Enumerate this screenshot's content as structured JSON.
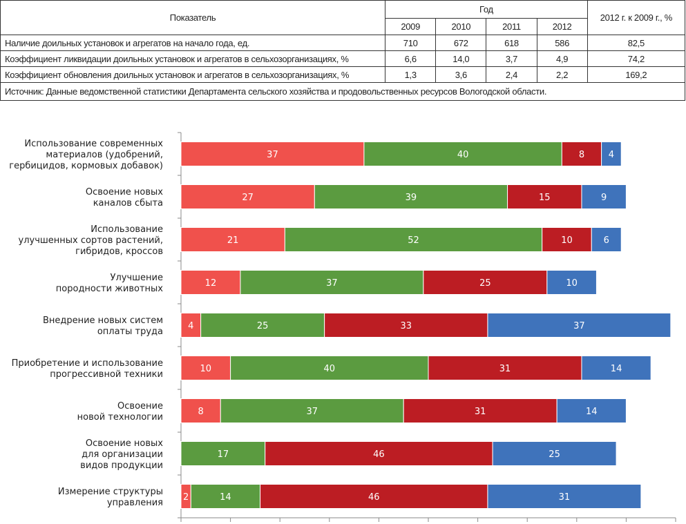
{
  "table": {
    "header": {
      "indicator": "Показатель",
      "year_group": "Год",
      "years": [
        "2009",
        "2010",
        "2011",
        "2012"
      ],
      "ratio": "2012 г. к 2009 г., %"
    },
    "rows": [
      {
        "label": "Наличие доильных установок и агрегатов на начало года, ед.",
        "values": [
          "710",
          "672",
          "618",
          "586"
        ],
        "ratio": "82,5"
      },
      {
        "label": "Коэффициент ликвидации доильных установок и агрегатов в сельхозорганизациях, %",
        "values": [
          "6,6",
          "14,0",
          "3,7",
          "4,9"
        ],
        "ratio": "74,2"
      },
      {
        "label": "Коэффициент обновления доильных установок и агрегатов в сельхозорганизациях, %",
        "values": [
          "1,3",
          "3,6",
          "2,4",
          "2,2"
        ],
        "ratio": "169,2"
      }
    ],
    "source": "Источник: Данные ведомственной статистики Департамента сельского хозяйства и продовольственных ресурсов Вологодской области."
  },
  "chart_data": {
    "type": "bar",
    "orientation": "horizontal",
    "stacked": true,
    "title": "",
    "xlabel": "",
    "ylabel": "",
    "xlim": [
      0,
      100
    ],
    "x_tick_step": 10,
    "grid": false,
    "legend": "none",
    "categories": [
      [
        "Использование современных",
        "материалов (удобрений,",
        "гербицидов, кормовых добавок)"
      ],
      [
        "Освоение новых",
        "каналов сбыта"
      ],
      [
        "Использование",
        "улучшенных сортов растений,",
        "гибридов, кроссов"
      ],
      [
        "Улучшение",
        "породности животных"
      ],
      [
        "Внедрение новых систем",
        "оплаты труда"
      ],
      [
        "Приобретение и использование",
        "прогрессивной техники"
      ],
      [
        "Освоение",
        "новой технологии"
      ],
      [
        "Освоение новых",
        "для организации",
        "видов продукции"
      ],
      [
        "Измерение структуры",
        "управления"
      ]
    ],
    "series": [
      {
        "name": "series-1",
        "color": "#F0514C",
        "values": [
          37,
          27,
          21,
          12,
          4,
          10,
          8,
          0,
          2
        ]
      },
      {
        "name": "series-2",
        "color": "#5B9B40",
        "values": [
          40,
          39,
          52,
          37,
          25,
          40,
          37,
          17,
          14
        ]
      },
      {
        "name": "series-3",
        "color": "#BC1D23",
        "values": [
          8,
          15,
          10,
          25,
          33,
          31,
          31,
          46,
          46
        ]
      },
      {
        "name": "series-4",
        "color": "#3F73BB",
        "values": [
          4,
          9,
          6,
          10,
          37,
          14,
          14,
          25,
          31
        ]
      }
    ]
  }
}
